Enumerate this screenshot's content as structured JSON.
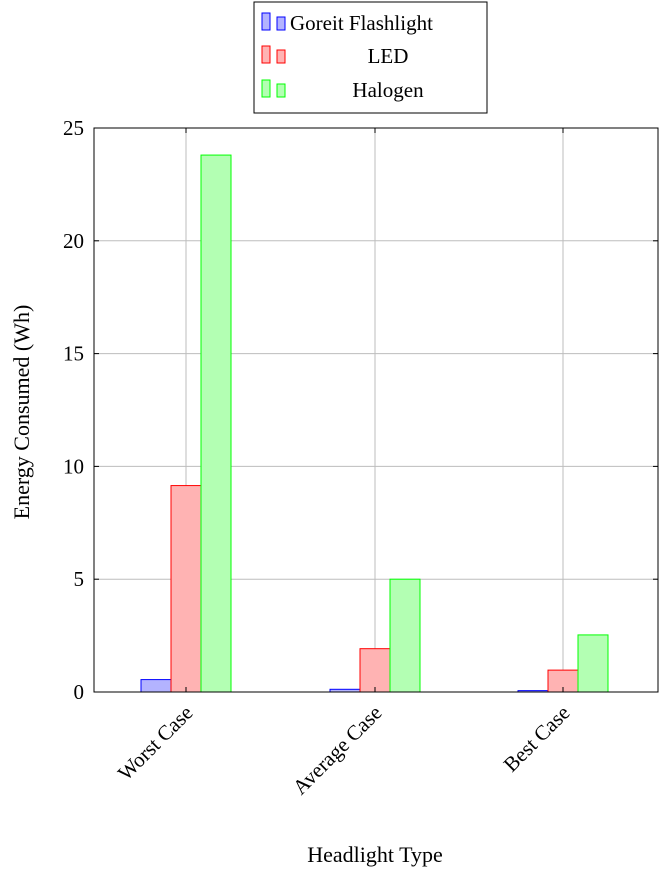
{
  "chart_data": {
    "type": "bar",
    "title": "",
    "xlabel": "Headlight Type",
    "ylabel": "Energy Consumed (Wh)",
    "categories": [
      "Worst Case",
      "Average Case",
      "Best Case"
    ],
    "ylim": [
      0,
      25
    ],
    "yticks": [
      0,
      5,
      10,
      15,
      20,
      25
    ],
    "grid": true,
    "legend_position": "top-center",
    "series": [
      {
        "name": "Goreit Flashlight",
        "values": [
          0.55,
          0.12,
          0.06
        ],
        "fill": "#b3b3ff",
        "stroke": "#0000ff"
      },
      {
        "name": "LED",
        "values": [
          9.15,
          1.92,
          0.97
        ],
        "fill": "#ffb3b3",
        "stroke": "#ff0000"
      },
      {
        "name": "Halogen",
        "values": [
          23.8,
          5.0,
          2.53
        ],
        "fill": "#b3ffb3",
        "stroke": "#00ff00"
      }
    ]
  }
}
